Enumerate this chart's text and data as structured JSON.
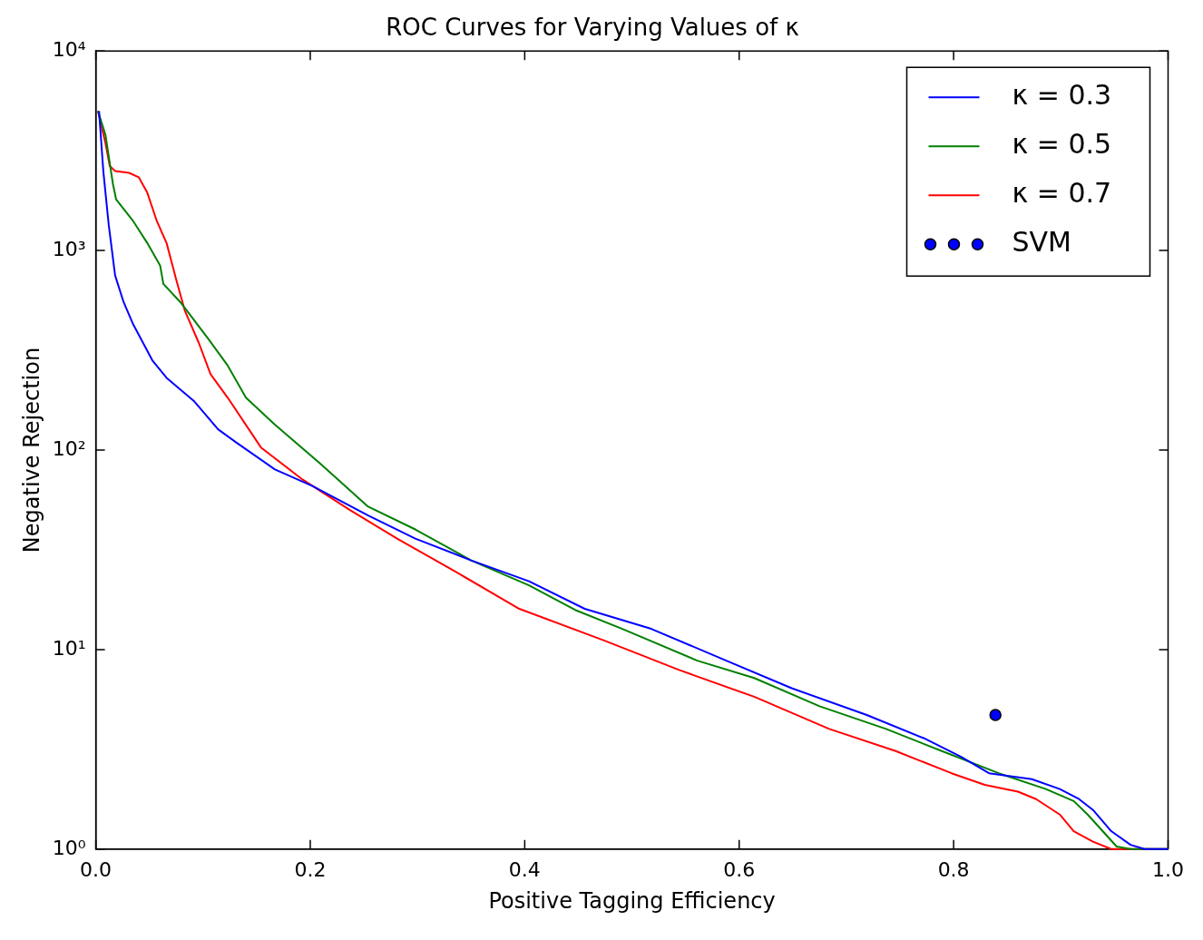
{
  "chart_data": {
    "type": "line",
    "title": "ROC Curves for Varying Values of κ",
    "xlabel": "Positive Tagging Efficiency",
    "ylabel": "Negative Rejection",
    "log": "y",
    "grid": false,
    "legend": "top right",
    "line_style": "solid",
    "xlim": [
      0,
      1
    ],
    "xticks": [
      {
        "value": 0,
        "label": "0.0"
      },
      {
        "value": 0.2,
        "label": "0.2"
      },
      {
        "value": 0.4,
        "label": "0.4"
      },
      {
        "value": 0.6,
        "label": "0.6"
      },
      {
        "value": 0.8,
        "label": "0.8"
      },
      {
        "value": 1,
        "label": "1.0"
      }
    ],
    "ylim": [
      1,
      10000
    ],
    "yticks": [
      {
        "value": 1,
        "label": "10⁰"
      },
      {
        "value": 10,
        "label": "10¹"
      },
      {
        "value": 100,
        "label": "10²"
      },
      {
        "value": 1000,
        "label": "10³"
      },
      {
        "value": 10000,
        "label": "10⁴"
      }
    ],
    "series": [
      {
        "name": "κ = 0.3",
        "type": "line",
        "marker": "none",
        "color": "#0000ff",
        "x": [
          0.003,
          0.007,
          0.012,
          0.018,
          0.026,
          0.035,
          0.053,
          0.066,
          0.092,
          0.114,
          0.13,
          0.167,
          0.202,
          0.254,
          0.298,
          0.35,
          0.404,
          0.456,
          0.518,
          0.588,
          0.649,
          0.719,
          0.772,
          0.807,
          0.833,
          0.873,
          0.899,
          0.917,
          0.93,
          0.947,
          0.965,
          0.978,
          1.0
        ],
        "values": [
          5000,
          2500,
          1350,
          750,
          550,
          425,
          280,
          230,
          175,
          127,
          110,
          80,
          66,
          47,
          36,
          28,
          22,
          16,
          12.7,
          8.8,
          6.4,
          4.7,
          3.6,
          2.9,
          2.4,
          2.24,
          2.0,
          1.78,
          1.57,
          1.23,
          1.05,
          1,
          1
        ]
      },
      {
        "name": "κ = 0.5",
        "type": "line",
        "marker": "none",
        "color": "#008000",
        "x": [
          0.002,
          0.009,
          0.016,
          0.019,
          0.035,
          0.048,
          0.06,
          0.063,
          0.079,
          0.105,
          0.123,
          0.14,
          0.167,
          0.211,
          0.254,
          0.298,
          0.35,
          0.404,
          0.447,
          0.491,
          0.561,
          0.614,
          0.675,
          0.737,
          0.789,
          0.842,
          0.886,
          0.912,
          0.925,
          0.939,
          0.952,
          0.965,
          1.0
        ],
        "values": [
          5000,
          3800,
          2150,
          1800,
          1400,
          1090,
          840,
          680,
          550,
          360,
          265,
          183,
          134,
          84,
          52,
          40,
          28,
          21,
          15.8,
          12.7,
          8.8,
          7.2,
          5.2,
          4.0,
          3.1,
          2.4,
          2.0,
          1.74,
          1.49,
          1.23,
          1.03,
          1,
          1
        ]
      },
      {
        "name": "κ = 0.7",
        "type": "line",
        "marker": "none",
        "color": "#ff0000",
        "x": [
          0.002,
          0.009,
          0.013,
          0.018,
          0.031,
          0.04,
          0.048,
          0.057,
          0.066,
          0.075,
          0.083,
          0.096,
          0.107,
          0.123,
          0.154,
          0.193,
          0.237,
          0.281,
          0.333,
          0.395,
          0.474,
          0.544,
          0.614,
          0.684,
          0.746,
          0.798,
          0.829,
          0.86,
          0.877,
          0.899,
          0.912,
          0.93,
          0.947,
          1.0
        ],
        "values": [
          5000,
          3450,
          2650,
          2500,
          2450,
          2330,
          1950,
          1400,
          1090,
          715,
          500,
          345,
          240,
          183,
          103,
          71,
          50,
          36,
          25,
          16,
          11.1,
          7.9,
          5.8,
          4.0,
          3.1,
          2.4,
          2.1,
          1.94,
          1.78,
          1.49,
          1.23,
          1.09,
          1,
          1
        ]
      },
      {
        "name": "SVM",
        "type": "scatter",
        "marker": "circle",
        "color": "#0000ff",
        "x": [
          0.839
        ],
        "values": [
          4.7
        ]
      }
    ]
  }
}
